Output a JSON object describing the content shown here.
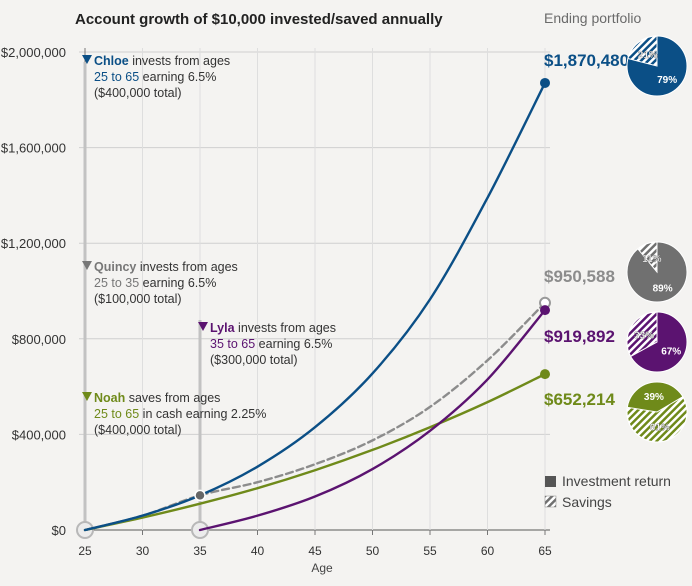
{
  "chart_data": {
    "type": "line",
    "title": "Account growth of $10,000 invested/saved annually",
    "xlabel": "Age",
    "ylabel": "",
    "xlim": [
      25,
      65
    ],
    "ylim": [
      0,
      2000000
    ],
    "x_ticks": [
      "25",
      "30",
      "35",
      "40",
      "45",
      "50",
      "55",
      "60",
      "65"
    ],
    "y_ticks": [
      "$0",
      "$400,000",
      "$800,000",
      "$1,200,000",
      "$1,600,000",
      "$2,000,000"
    ],
    "series": [
      {
        "name": "Chloe",
        "color": "#0b4f86",
        "start": 25,
        "end": 65,
        "final": 1870480,
        "final_label": "$1,870,480",
        "dashed": false,
        "x": [
          25,
          30,
          35,
          40,
          45,
          50,
          55,
          60,
          65
        ],
        "values": [
          0,
          60000,
          145000,
          265000,
          430000,
          655000,
          965000,
          1390000,
          1870480
        ]
      },
      {
        "name": "Quincy",
        "color": "#8c8c8c",
        "start": 25,
        "end": 65,
        "final": 950588,
        "final_label": "$950,588",
        "dashed": true,
        "x": [
          25,
          30,
          35,
          40,
          45,
          50,
          55,
          60,
          65
        ],
        "values": [
          0,
          60000,
          145000,
          200000,
          275000,
          375000,
          515000,
          710000,
          950588
        ]
      },
      {
        "name": "Lyla",
        "color": "#5b1370",
        "start": 35,
        "end": 65,
        "final": 919892,
        "final_label": "$919,892",
        "dashed": false,
        "x": [
          35,
          40,
          45,
          50,
          55,
          60,
          65
        ],
        "values": [
          0,
          60000,
          140000,
          255000,
          415000,
          630000,
          919892
        ]
      },
      {
        "name": "Noah",
        "color": "#6f8a1a",
        "start": 25,
        "end": 65,
        "final": 652214,
        "final_label": "$652,214",
        "dashed": false,
        "x": [
          25,
          30,
          35,
          40,
          45,
          50,
          55,
          60,
          65
        ],
        "values": [
          0,
          52000,
          110000,
          175000,
          250000,
          335000,
          430000,
          535000,
          652214
        ]
      }
    ],
    "annotations": [
      {
        "name": "Chloe",
        "line1": " invests from ages",
        "range": "25 to 65",
        "line2": " earning 6.5%",
        "line3": "($400,000 total)",
        "color": "#0b4f86"
      },
      {
        "name": "Quincy",
        "line1": " invests from ages",
        "range": "25 to 35",
        "line2": " earning 6.5%",
        "line3": "($100,000 total)",
        "color": "#777777"
      },
      {
        "name": "Lyla",
        "line1": " invests from ages",
        "range": "35 to 65",
        "line2": " earning 6.5%",
        "line3": "($300,000 total)",
        "color": "#5b1370"
      },
      {
        "name": "Noah",
        "line1": " saves from ages",
        "range": "25 to 65",
        "line2": " in cash earning 2.25%",
        "line3": "($400,000 total)",
        "color": "#6f8a1a"
      }
    ],
    "portfolio": {
      "title": "Ending portfolio",
      "pies": [
        {
          "series": "Chloe",
          "investment_pct": 79,
          "savings_pct": 21,
          "color": "#0b4f86"
        },
        {
          "series": "Quincy",
          "investment_pct": 89,
          "savings_pct": 11,
          "color": "#707070"
        },
        {
          "series": "Lyla",
          "investment_pct": 67,
          "savings_pct": 33,
          "color": "#5b1370"
        },
        {
          "series": "Noah",
          "investment_pct": 39,
          "savings_pct": 61,
          "color": "#6f8a1a"
        }
      ],
      "legend": [
        "Investment return",
        "Savings"
      ]
    }
  }
}
